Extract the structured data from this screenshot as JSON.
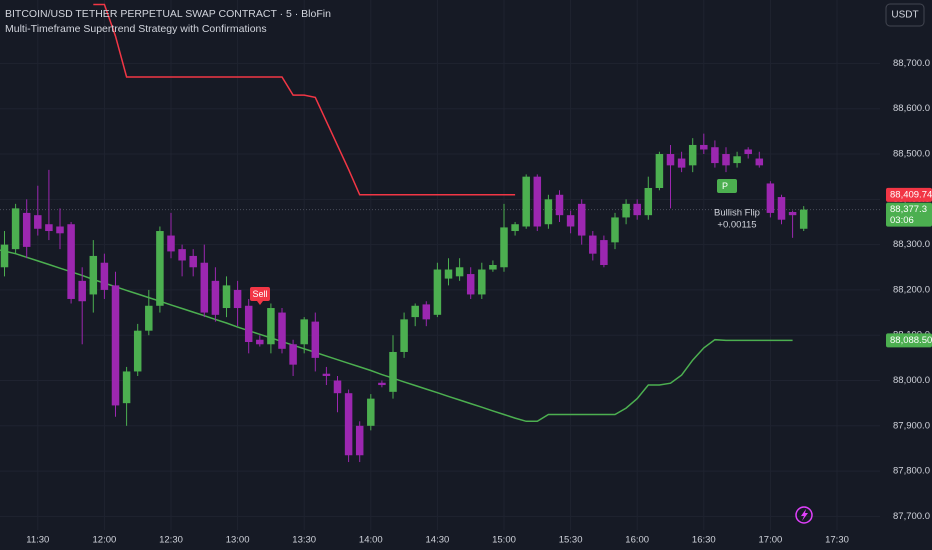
{
  "chart_data": {
    "type": "candlestick",
    "title": "BITCOIN/USD TETHER PERPETUAL SWAP CONTRACT · 5 · BloFin",
    "subtitle": "Multi-Timeframe Supertrend Strategy with Confirmations",
    "currency_button": "USDT",
    "categories": [
      null,
      null,
      null,
      "11:30",
      null,
      null,
      null,
      null,
      null,
      "12:00",
      null,
      null,
      null,
      null,
      null,
      "12:30",
      null,
      null,
      null,
      null,
      null,
      "13:00",
      null,
      null,
      null,
      null,
      null,
      "13:30",
      null,
      null,
      null,
      null,
      null,
      "14:00",
      null,
      null,
      null,
      null,
      null,
      "14:30",
      null,
      null,
      null,
      null,
      null,
      "15:00",
      null,
      null,
      null,
      null,
      null,
      "15:30",
      null,
      null,
      null,
      null,
      null,
      "16:00",
      null,
      null,
      null,
      null,
      null,
      "16:30",
      null,
      null,
      null,
      null,
      null,
      "17:00",
      null,
      null,
      null,
      null,
      null,
      "17:30"
    ],
    "open": [
      88250,
      88290,
      88370,
      88365,
      88345,
      88340,
      88345,
      88220,
      88190,
      88260,
      88210,
      87950,
      88020,
      88110,
      88165,
      88320,
      88290,
      88275,
      88260,
      88220,
      88160,
      88200,
      88165,
      88090,
      88080,
      88150,
      88080,
      88080,
      88130,
      88015,
      88000,
      87972,
      87900,
      87900,
      87995,
      87975,
      88063,
      88140,
      88168,
      88145,
      88225,
      88230,
      88235,
      88190,
      88245,
      88250,
      88330,
      88340,
      88450,
      88345,
      88410,
      88365,
      88390,
      88320,
      88310,
      88305,
      88360,
      88390,
      88365,
      88425,
      88500,
      88490,
      88475,
      88520,
      88515,
      88500,
      88480,
      88510,
      88490,
      88435,
      88405,
      88372,
      88335,
      null,
      null,
      null
    ],
    "high": [
      88330,
      88390,
      88400,
      88430,
      88465,
      88380,
      88350,
      88250,
      88310,
      88280,
      88240,
      88030,
      88125,
      88200,
      88340,
      88370,
      88300,
      88290,
      88300,
      88250,
      88230,
      88220,
      88180,
      88100,
      88170,
      88160,
      88090,
      88140,
      88150,
      88030,
      88010,
      87980,
      87910,
      87970,
      88000,
      88100,
      88150,
      88170,
      88175,
      88260,
      88270,
      88270,
      88250,
      88260,
      88265,
      88390,
      88350,
      88455,
      88455,
      88410,
      88420,
      88375,
      88400,
      88330,
      88320,
      88370,
      88400,
      88400,
      88450,
      88505,
      88520,
      88505,
      88535,
      88545,
      88530,
      88515,
      88505,
      88515,
      88505,
      88440,
      88410,
      88375,
      88385,
      null,
      null,
      null
    ],
    "low": [
      88230,
      88280,
      88270,
      88320,
      88310,
      88290,
      88170,
      88080,
      88150,
      88180,
      87920,
      87900,
      88010,
      88100,
      88150,
      88270,
      88230,
      88230,
      88140,
      88130,
      88140,
      88120,
      88060,
      88075,
      88060,
      88060,
      88010,
      88060,
      88020,
      87990,
      87930,
      87820,
      87820,
      87890,
      87985,
      87960,
      88050,
      88120,
      88120,
      88140,
      88210,
      88220,
      88180,
      88180,
      88240,
      88240,
      88320,
      88335,
      88330,
      88335,
      88350,
      88325,
      88300,
      88265,
      88250,
      88290,
      88345,
      88355,
      88355,
      88420,
      88380,
      88460,
      88460,
      88500,
      88470,
      88460,
      88470,
      88490,
      88470,
      88360,
      88345,
      88315,
      88330,
      null,
      null,
      null
    ],
    "close": [
      88300,
      88380,
      88295,
      88335,
      88330,
      88325,
      88180,
      88175,
      88275,
      88200,
      87945,
      88020,
      88110,
      88165,
      88330,
      88285,
      88265,
      88250,
      88150,
      88145,
      88210,
      88160,
      88085,
      88080,
      88160,
      88070,
      88035,
      88135,
      88050,
      88010,
      87972,
      87835,
      87835,
      87960,
      87990,
      88063,
      88135,
      88165,
      88135,
      88245,
      88245,
      88250,
      88190,
      88245,
      88255,
      88338,
      88345,
      88450,
      88340,
      88400,
      88365,
      88340,
      88320,
      88280,
      88255,
      88360,
      88390,
      88365,
      88425,
      88500,
      88475,
      88470,
      88520,
      88510,
      88480,
      88475,
      88495,
      88500,
      88475,
      88370,
      88355,
      88365,
      88377.3,
      null,
      null,
      null
    ],
    "up_color": "#4caf50",
    "down_color": "#9c27b0",
    "lines": [
      {
        "color": "#f23645",
        "values": [
          null,
          null,
          null,
          null,
          null,
          null,
          null,
          null,
          88830,
          88830,
          88760,
          88670,
          88670,
          88670,
          88670,
          88670,
          88670,
          88670,
          88670,
          88670,
          88670,
          88670,
          88670,
          88670,
          88670,
          88670,
          88630,
          88630,
          88625,
          88572,
          88519,
          88466,
          88410,
          88410,
          88410,
          88410,
          88410,
          88410,
          88410,
          88410,
          88410,
          88410,
          88410,
          88410,
          88410,
          88410,
          88410,
          null,
          null,
          null,
          null,
          null,
          null,
          null,
          null,
          null,
          null,
          null,
          null,
          null,
          null,
          null,
          null,
          null,
          null,
          null,
          null,
          null,
          null,
          null,
          null,
          null,
          null,
          null,
          null,
          null
        ]
      },
      {
        "color": "#4caf50",
        "values": [
          88288,
          88280,
          88272,
          88264,
          88256,
          88248,
          88240,
          88232,
          88223,
          88215,
          88207,
          88199,
          88191,
          88183,
          88175,
          88167,
          88159,
          88151,
          88143,
          88135,
          88127,
          88118,
          88110,
          88102,
          88094,
          88086,
          88078,
          88070,
          88062,
          88054,
          88046,
          88038,
          88030,
          88022,
          88013,
          88005,
          87997,
          87989,
          87981,
          87973,
          87965,
          87957,
          87949,
          87941,
          87933,
          87925,
          87917,
          87910,
          87910,
          87925,
          87925,
          87925,
          87925,
          87925,
          87925,
          87925,
          87939,
          87960,
          87990,
          87990,
          87994,
          88012,
          88045,
          88072,
          88090,
          88088.5,
          88088.5,
          88088.5,
          88088.5,
          88088.5,
          88088.5,
          88088.5,
          null,
          null,
          null,
          null
        ]
      }
    ],
    "ylim": [
      87670,
      88840
    ],
    "yticks": [
      {
        "value": 88700,
        "label": "88,700.0"
      },
      {
        "value": 88600,
        "label": "88,600.0"
      },
      {
        "value": 88500,
        "label": "88,500.0"
      },
      {
        "value": 88400,
        "label": "88,400.0"
      },
      {
        "value": 88300,
        "label": "88,300.0"
      },
      {
        "value": 88200,
        "label": "88,200.0"
      },
      {
        "value": 88100,
        "label": "88,100.0"
      },
      {
        "value": 88000,
        "label": "88,000.0"
      },
      {
        "value": 87900,
        "label": "87,900.0"
      },
      {
        "value": 87800,
        "label": "87,800.0"
      },
      {
        "value": 87700,
        "label": "87,700.0"
      }
    ],
    "grid": true,
    "price_labels": [
      {
        "value": 88409.74,
        "label": "88,409.74",
        "color": "#f23645"
      },
      {
        "value": 88377.3,
        "label": "88,377.3",
        "sublabel": "03:06",
        "color": "#4caf50"
      },
      {
        "value": 88088.5,
        "label": "88,088.50",
        "color": "#4caf50"
      }
    ],
    "annotations": {
      "sell": "Sell",
      "flip_marker": "P",
      "flip": "Bullish Flip",
      "flip_value": "+0.00115"
    }
  }
}
